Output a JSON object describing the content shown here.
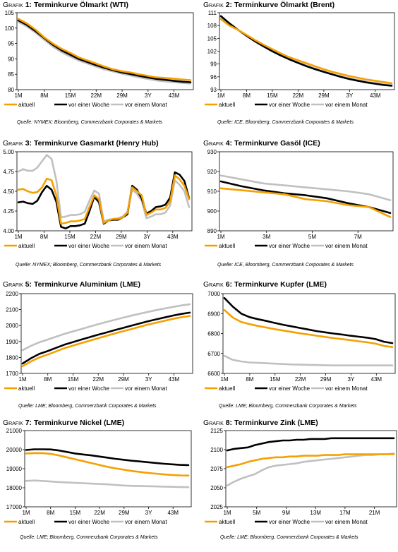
{
  "colors": {
    "aktuell": "#f5a000",
    "woche": "#000000",
    "monat": "#c0c0c0"
  },
  "chart_data": [
    {
      "type": "line",
      "prefix": "Grafik",
      "number": "1",
      "title": "Terminkurve Ölmarkt (WTI)",
      "ylim": [
        80,
        105
      ],
      "yticks": [
        "80",
        "85",
        "90",
        "95",
        "100",
        "105"
      ],
      "xticks": [
        "1M",
        "8M",
        "15M",
        "22M",
        "29M",
        "3Y",
        "43M"
      ],
      "series": [
        {
          "name": "aktuell",
          "values": [
            103,
            101.5,
            99.5,
            97,
            95,
            93.3,
            92,
            90.5,
            89.5,
            88.5,
            87.5,
            86.6,
            86,
            85.6,
            85,
            84.5,
            84,
            83.8,
            83.6,
            83.3,
            83.1
          ]
        },
        {
          "name": "vor einer Woche",
          "values": [
            102.5,
            101,
            99,
            96.8,
            94.6,
            92.8,
            91.4,
            90,
            89,
            88,
            87.1,
            86.3,
            85.6,
            85.1,
            84.5,
            84,
            83.5,
            83.2,
            82.9,
            82.6,
            82.4
          ]
        },
        {
          "name": "vor einem Monat",
          "values": [
            102,
            100.5,
            98.5,
            96.2,
            94,
            92.2,
            90.8,
            89.5,
            88.5,
            87.5,
            86.6,
            85.9,
            85.2,
            84.6,
            84,
            83.5,
            83,
            82.7,
            82.4,
            82.2,
            82
          ]
        }
      ],
      "source": "Quelle: NYMEX; Bloomberg, Commerzbank Corporates & Markets"
    },
    {
      "type": "line",
      "prefix": "Grafik",
      "number": "2",
      "title": "Terminkurve Ölmarkt (Brent)",
      "ylim": [
        93,
        111
      ],
      "yticks": [
        "93",
        "96",
        "99",
        "102",
        "105",
        "108",
        "111"
      ],
      "xticks": [
        "1M",
        "8M",
        "15M",
        "22M",
        "29M",
        "3Y",
        "43M"
      ],
      "series": [
        {
          "name": "aktuell",
          "values": [
            109.5,
            108,
            107,
            105.8,
            104.6,
            103.5,
            102.5,
            101.5,
            100.6,
            99.9,
            99.2,
            98.5,
            97.8,
            97.2,
            96.7,
            96.2,
            95.8,
            95.4,
            95.1,
            94.8,
            94.5
          ]
        },
        {
          "name": "vor einer Woche",
          "values": [
            110.2,
            108.5,
            107,
            105.6,
            104.3,
            103.1,
            102,
            101,
            100.1,
            99.3,
            98.5,
            97.8,
            97.2,
            96.6,
            96,
            95.5,
            95.1,
            94.7,
            94.4,
            94.1,
            93.9
          ]
        },
        {
          "name": "vor einem Monat",
          "values": [
            110,
            108.4,
            107,
            105.7,
            104.4,
            103.3,
            102.2,
            101.2,
            100.3,
            99.5,
            98.7,
            98,
            97.3,
            96.7,
            96.2,
            95.7,
            95.3,
            94.9,
            94.6,
            94.3,
            94.1
          ]
        }
      ],
      "source": "Quelle: ICE, Bloomberg, Commerzbank Corporates & Markets"
    },
    {
      "type": "line",
      "prefix": "Grafik",
      "number": "3",
      "title": "Terminkurve Gasmarkt (Henry Hub)",
      "ylim": [
        4,
        5
      ],
      "yticks": [
        "4.00",
        "4.25",
        "4.50",
        "4.75",
        "5.00"
      ],
      "xticks": [
        "1M",
        "8M",
        "15M",
        "22M",
        "29M",
        "3Y",
        "43M"
      ],
      "series": [
        {
          "name": "aktuell",
          "values": [
            4.52,
            4.53,
            4.5,
            4.48,
            4.49,
            4.55,
            4.66,
            4.64,
            4.45,
            4.09,
            4.1,
            4.12,
            4.12,
            4.13,
            4.15,
            4.3,
            4.45,
            4.4,
            4.1,
            4.13,
            4.15,
            4.15,
            4.17,
            4.23,
            4.55,
            4.5,
            4.45,
            4.2,
            4.23,
            4.27,
            4.27,
            4.29,
            4.37,
            4.7,
            4.65,
            4.57,
            4.4
          ]
        },
        {
          "name": "vor einer Woche",
          "values": [
            4.36,
            4.37,
            4.35,
            4.34,
            4.38,
            4.49,
            4.57,
            4.52,
            4.37,
            4.05,
            4.03,
            4.06,
            4.06,
            4.07,
            4.09,
            4.25,
            4.43,
            4.36,
            4.09,
            4.13,
            4.14,
            4.14,
            4.17,
            4.21,
            4.57,
            4.52,
            4.41,
            4.22,
            4.25,
            4.3,
            4.31,
            4.33,
            4.42,
            4.74,
            4.71,
            4.63,
            4.41
          ]
        },
        {
          "name": "vor einem Monat",
          "values": [
            4.75,
            4.78,
            4.76,
            4.76,
            4.8,
            4.88,
            4.96,
            4.91,
            4.64,
            4.17,
            4.18,
            4.2,
            4.2,
            4.21,
            4.24,
            4.38,
            4.51,
            4.47,
            4.12,
            4.14,
            4.15,
            4.16,
            4.18,
            4.24,
            4.52,
            4.47,
            4.38,
            4.16,
            4.18,
            4.21,
            4.21,
            4.23,
            4.32,
            4.64,
            4.58,
            4.5,
            4.3
          ]
        }
      ],
      "source": "Quelle: NYMEX; Bloomberg, Commerzbank Corporates & Markets"
    },
    {
      "type": "line",
      "prefix": "Grafik",
      "number": "4",
      "title": "Terminkurve Gasöl (ICE)",
      "ylim": [
        890,
        930
      ],
      "yticks": [
        "890",
        "900",
        "910",
        "920",
        "930"
      ],
      "xticks": [
        "1M",
        "3M",
        "5M",
        "7M"
      ],
      "series": [
        {
          "name": "aktuell",
          "values": [
            911.5,
            910.5,
            909.5,
            908.5,
            906,
            905,
            903,
            902,
            897
          ]
        },
        {
          "name": "vor einer Woche",
          "values": [
            915,
            912.5,
            910.5,
            909,
            908,
            906.5,
            904,
            902,
            899
          ]
        },
        {
          "name": "vor einem Monat",
          "values": [
            918,
            916,
            914,
            913,
            912,
            911,
            910,
            908.5,
            905.5
          ]
        }
      ],
      "source": "Quelle: ICE, Bloomberg, Commerzbank Corporates & Markets"
    },
    {
      "type": "line",
      "prefix": "Grafik",
      "number": "5",
      "title": "Terminkurve Aluminium (LME)",
      "ylim": [
        1700,
        2200
      ],
      "yticks": [
        "1700",
        "1800",
        "1900",
        "2000",
        "2100",
        "2200"
      ],
      "xticks": [
        "1M",
        "8M",
        "15M",
        "22M",
        "29M",
        "3Y",
        "43M"
      ],
      "series": [
        {
          "name": "aktuell",
          "values": [
            1745,
            1775,
            1800,
            1818,
            1838,
            1858,
            1874,
            1890,
            1905,
            1920,
            1935,
            1950,
            1964,
            1978,
            1992,
            2006,
            2018,
            2030,
            2042,
            2052,
            2060
          ]
        },
        {
          "name": "vor einer Woche",
          "values": [
            1762,
            1795,
            1822,
            1840,
            1860,
            1880,
            1896,
            1912,
            1927,
            1942,
            1956,
            1971,
            1985,
            1999,
            2013,
            2027,
            2039,
            2051,
            2063,
            2073,
            2081
          ]
        },
        {
          "name": "vor einem Monat",
          "values": [
            1845,
            1873,
            1895,
            1912,
            1930,
            1948,
            1963,
            1978,
            1993,
            2008,
            2022,
            2036,
            2049,
            2062,
            2074,
            2086,
            2097,
            2107,
            2117,
            2126,
            2133
          ]
        }
      ],
      "source": "Quelle: LME; Bloomberg, Commerzbank Corporates & Markets"
    },
    {
      "type": "line",
      "prefix": "Grafik",
      "number": "6",
      "title": "Terminkurve Kupfer (LME)",
      "ylim": [
        6600,
        7000
      ],
      "yticks": [
        "6600",
        "6700",
        "6800",
        "6900",
        "7000"
      ],
      "xticks": [
        "1M",
        "8M",
        "15M",
        "22M",
        "29M",
        "3Y",
        "43M"
      ],
      "series": [
        {
          "name": "aktuell",
          "values": [
            6918,
            6880,
            6858,
            6847,
            6838,
            6830,
            6822,
            6815,
            6808,
            6801,
            6795,
            6789,
            6783,
            6777,
            6772,
            6767,
            6761,
            6756,
            6749,
            6738,
            6732
          ]
        },
        {
          "name": "vor einer Woche",
          "values": [
            6978,
            6935,
            6900,
            6882,
            6872,
            6863,
            6853,
            6844,
            6836,
            6828,
            6820,
            6812,
            6806,
            6800,
            6795,
            6789,
            6784,
            6779,
            6772,
            6759,
            6752
          ]
        },
        {
          "name": "vor einem Monat",
          "values": [
            6688,
            6668,
            6660,
            6655,
            6653,
            6651,
            6649,
            6647,
            6645,
            6644,
            6643,
            6642,
            6641,
            6640,
            6640,
            6640,
            6640,
            6640,
            6640,
            6640,
            6640
          ]
        }
      ],
      "source": "Quelle: LME; Bloomberg, Commerzbank Corporates & Markets"
    },
    {
      "type": "line",
      "prefix": "Grafik",
      "number": "7",
      "title": "Terminkurve Nickel (LME)",
      "ylim": [
        17000,
        21000
      ],
      "yticks": [
        "17000",
        "18000",
        "19000",
        "20000",
        "21000"
      ],
      "xticks": [
        "1M",
        "8M",
        "15M",
        "22M",
        "29M",
        "3Y",
        "43M"
      ],
      "series": [
        {
          "name": "aktuell",
          "values": [
            19800,
            19820,
            19820,
            19780,
            19700,
            19600,
            19500,
            19400,
            19300,
            19200,
            19100,
            19020,
            18950,
            18880,
            18830,
            18780,
            18740,
            18700,
            18670,
            18650,
            18640
          ]
        },
        {
          "name": "vor einer Woche",
          "values": [
            19980,
            20020,
            20020,
            20010,
            19960,
            19880,
            19800,
            19750,
            19700,
            19640,
            19580,
            19520,
            19470,
            19420,
            19380,
            19340,
            19300,
            19260,
            19230,
            19200,
            19190
          ]
        },
        {
          "name": "vor einem Monat",
          "values": [
            18360,
            18380,
            18360,
            18330,
            18300,
            18280,
            18260,
            18240,
            18220,
            18200,
            18180,
            18150,
            18120,
            18100,
            18090,
            18080,
            18070,
            18060,
            18050,
            18040,
            18030
          ]
        }
      ],
      "source": "Quelle: LME; Bloomberg, Commerzbank Corporates & Markets"
    },
    {
      "type": "line",
      "prefix": "Grafik",
      "number": "8",
      "title": "Terminkurve Zink (LME)",
      "ylim": [
        2025,
        2125
      ],
      "yticks": [
        "2025",
        "2050",
        "2075",
        "2100",
        "2125"
      ],
      "xticks": [
        "1M",
        "5M",
        "9M",
        "13M",
        "17M",
        "21M"
      ],
      "series": [
        {
          "name": "aktuell",
          "values": [
            2077,
            2079,
            2081,
            2084,
            2086,
            2088,
            2089,
            2090,
            2090,
            2091,
            2091,
            2092,
            2092,
            2092,
            2093,
            2093,
            2093,
            2094,
            2094,
            2094,
            2094,
            2094,
            2094,
            2094,
            2094
          ]
        },
        {
          "name": "vor einer Woche",
          "values": [
            2099,
            2101,
            2102,
            2103,
            2106,
            2108,
            2110,
            2111,
            2112,
            2112,
            2113,
            2113,
            2114,
            2114,
            2114,
            2115,
            2115,
            2115,
            2115,
            2115,
            2115,
            2115,
            2115,
            2115,
            2115
          ]
        },
        {
          "name": "vor einem Monat",
          "values": [
            2053,
            2058,
            2062,
            2065,
            2068,
            2073,
            2077,
            2079,
            2080,
            2081,
            2082,
            2084,
            2085,
            2086,
            2087,
            2088,
            2089,
            2090,
            2091,
            2092,
            2093,
            2093,
            2094,
            2094,
            2095
          ]
        }
      ],
      "source": "Quelle: LME; Bloomberg, Commerzbank Corporates & Markets"
    }
  ]
}
